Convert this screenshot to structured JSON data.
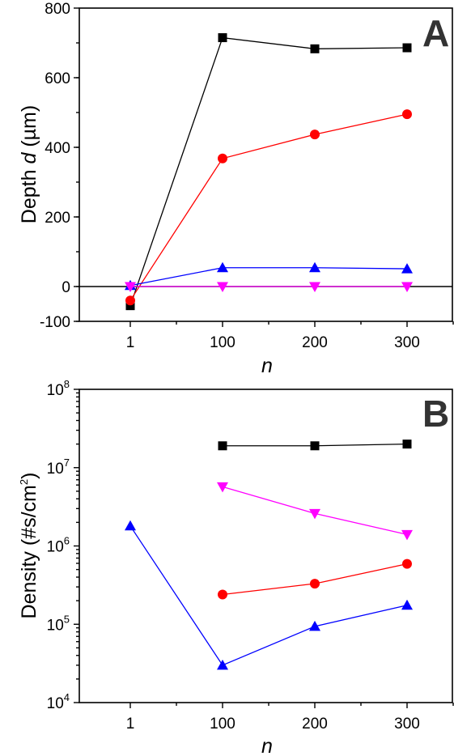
{
  "chart_data": [
    {
      "type": "line",
      "panel_label": "A",
      "x_categories": [
        "1",
        "100",
        "200",
        "300"
      ],
      "xlabel": "n",
      "ylabel_parts": [
        "Depth ",
        "d",
        " (µm)"
      ],
      "ylim": [
        -100,
        800
      ],
      "yticks": [
        -100,
        0,
        200,
        400,
        600,
        800
      ],
      "ytick_labels": [
        "-100",
        "0",
        "200",
        "400",
        "600",
        "800"
      ],
      "zero_line": true,
      "series": [
        {
          "marker": "square",
          "color": "#000000",
          "values": [
            -55,
            715,
            683,
            686
          ]
        },
        {
          "marker": "circle",
          "color": "#ff0000",
          "values": [
            -40,
            368,
            437,
            495
          ]
        },
        {
          "marker": "triangle-up",
          "color": "#0000ff",
          "values": [
            3,
            54,
            54,
            51
          ]
        },
        {
          "marker": "triangle-down",
          "color": "#ff00ff",
          "values": [
            0,
            0,
            0,
            0
          ]
        }
      ]
    },
    {
      "type": "line",
      "panel_label": "B",
      "x_categories": [
        "1",
        "100",
        "200",
        "300"
      ],
      "xlabel": "n",
      "ylabel_parts": [
        "Density (#s/cm",
        "2",
        ")"
      ],
      "yscale": "log",
      "ylim": [
        10000,
        100000000
      ],
      "ytick_base": "10",
      "ytick_exponents": [
        "4",
        "5",
        "6",
        "7",
        "8"
      ],
      "series": [
        {
          "marker": "square",
          "color": "#000000",
          "values": [
            null,
            19000000,
            19000000,
            20000000
          ]
        },
        {
          "marker": "triangle-down",
          "color": "#ff00ff",
          "values": [
            null,
            5700000,
            2600000,
            1400000
          ]
        },
        {
          "marker": "circle",
          "color": "#ff0000",
          "values": [
            null,
            240000,
            330000,
            590000
          ]
        },
        {
          "marker": "triangle-up",
          "color": "#0000ff",
          "values": [
            1800000,
            30000,
            94000,
            175000
          ]
        }
      ]
    }
  ]
}
